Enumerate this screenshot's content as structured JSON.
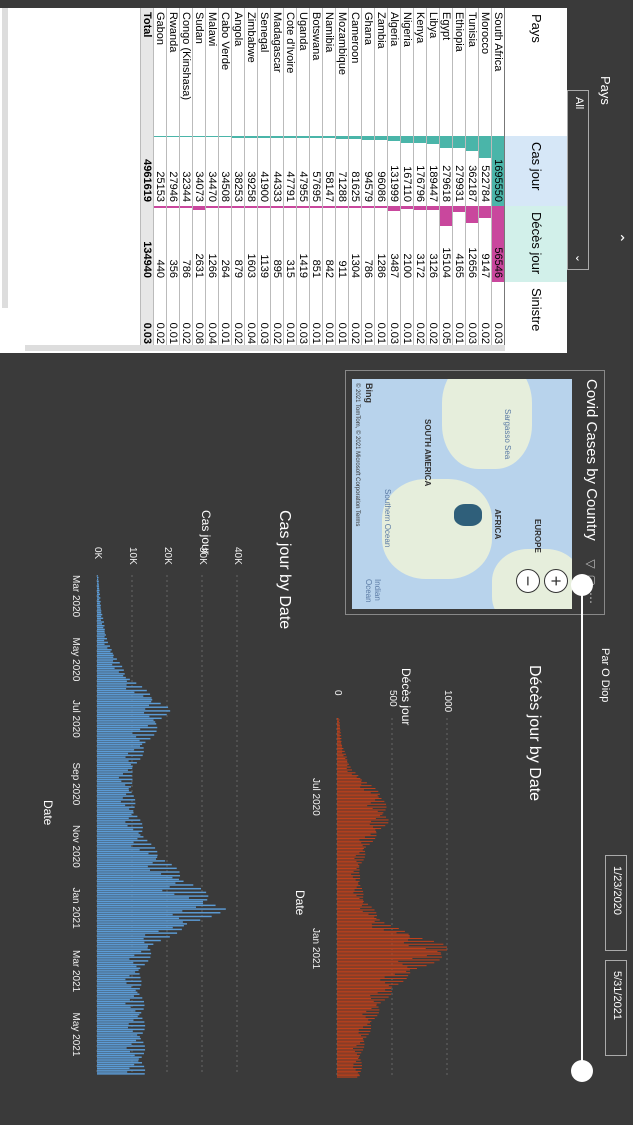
{
  "slicer": {
    "title": "Pays",
    "value": "All"
  },
  "table": {
    "headers": [
      "Pays",
      "Cas jour",
      "Décès jour",
      "Sinistre"
    ],
    "rows": [
      [
        "South Africa",
        "1695550",
        "56546",
        "0.03"
      ],
      [
        "Morocco",
        "522784",
        "9147",
        "0.02"
      ],
      [
        "Tunisia",
        "362187",
        "12656",
        "0.03"
      ],
      [
        "Ethiopia",
        "279931",
        "4165",
        "0.01"
      ],
      [
        "Egypt",
        "279618",
        "15104",
        "0.05"
      ],
      [
        "Libya",
        "189447",
        "3126",
        "0.02"
      ],
      [
        "Kenya",
        "176796",
        "3172",
        "0.02"
      ],
      [
        "Nigeria",
        "167110",
        "2100",
        "0.01"
      ],
      [
        "Algeria",
        "131999",
        "3487",
        "0.03"
      ],
      [
        "Zambia",
        "96086",
        "1286",
        "0.01"
      ],
      [
        "Ghana",
        "94579",
        "786",
        "0.01"
      ],
      [
        "Cameroon",
        "81625",
        "1304",
        "0.02"
      ],
      [
        "Mozambique",
        "71288",
        "911",
        "0.01"
      ],
      [
        "Namibia",
        "58147",
        "842",
        "0.01"
      ],
      [
        "Botswana",
        "57695",
        "851",
        "0.01"
      ],
      [
        "Uganda",
        "47955",
        "1419",
        "0.03"
      ],
      [
        "Cote d'Ivoire",
        "47791",
        "315",
        "0.01"
      ],
      [
        "Madagascar",
        "44333",
        "895",
        "0.02"
      ],
      [
        "Senegal",
        "41900",
        "1139",
        "0.03"
      ],
      [
        "Zimbabwe",
        "39258",
        "1603",
        "0.04"
      ],
      [
        "Angola",
        "38253",
        "879",
        "0.02"
      ],
      [
        "Cabo Verde",
        "34508",
        "264",
        "0.01"
      ],
      [
        "Malawi",
        "34470",
        "1266",
        "0.04"
      ],
      [
        "Sudan",
        "34073",
        "2631",
        "0.08"
      ],
      [
        "Congo (Kinshasa)",
        "32344",
        "786",
        "0.02"
      ],
      [
        "Rwanda",
        "27946",
        "356",
        "0.01"
      ],
      [
        "Gabon",
        "25153",
        "440",
        "0.02"
      ]
    ],
    "total": [
      "Total",
      "4961619",
      "134940",
      "0.03"
    ]
  },
  "map": {
    "title": "Covid Cases by Country",
    "labels": [
      "SOUTH AMERICA",
      "AFRICA",
      "EUROPE"
    ],
    "oceans": [
      "Sargasso Sea",
      "Southern Ocean",
      "Indian Ocean"
    ],
    "bing": "Bing",
    "copyright": "© 2021 TomTom, © 2021 Microsoft Corporation  Terms",
    "icons": [
      "filter-icon",
      "focus-icon",
      "more-icon"
    ]
  },
  "header": {
    "author": "Par O Diop",
    "date_start": "1/23/2020",
    "date_end": "5/31/2021"
  },
  "deces_chart": {
    "title": "Décès jour by Date",
    "xlabel": "Date",
    "ylabel": "Décès jour",
    "yticks": [
      "0",
      "500",
      "1000"
    ],
    "xticks": [
      "Jul 2020",
      "Jan 2021"
    ],
    "color": "#c0401a"
  },
  "cas_chart": {
    "title": "Cas jour by Date",
    "xlabel": "Date",
    "ylabel": "Cas jour",
    "yticks": [
      "0K",
      "10K",
      "20K",
      "30K",
      "40K"
    ],
    "xticks": [
      "Mar 2020",
      "May 2020",
      "Jul 2020",
      "Sep 2020",
      "Nov 2020",
      "Jan 2021",
      "Mar 2021",
      "May 2021"
    ],
    "color": "#5b9bd5"
  },
  "chart_data": [
    {
      "type": "bar",
      "title": "Décès jour by Date",
      "xlabel": "Date",
      "ylabel": "Décès jour",
      "ylim": [
        0,
        1100
      ],
      "x": [
        "2020-04",
        "2020-05",
        "2020-06",
        "2020-07",
        "2020-08",
        "2020-09",
        "2020-10",
        "2020-11",
        "2020-12",
        "2021-01",
        "2021-02",
        "2021-03",
        "2021-04",
        "2021-05"
      ],
      "values": [
        20,
        40,
        120,
        380,
        420,
        250,
        180,
        220,
        400,
        980,
        580,
        380,
        280,
        200
      ]
    },
    {
      "type": "bar",
      "title": "Cas jour by Date",
      "xlabel": "Date",
      "ylabel": "Cas jour",
      "ylim": [
        0,
        40000
      ],
      "x": [
        "2020-03",
        "2020-04",
        "2020-05",
        "2020-06",
        "2020-07",
        "2020-08",
        "2020-09",
        "2020-10",
        "2020-11",
        "2020-12",
        "2021-01",
        "2021-02",
        "2021-03",
        "2021-04",
        "2021-05"
      ],
      "values": [
        300,
        1000,
        2500,
        7000,
        17000,
        12000,
        8000,
        9000,
        12000,
        20000,
        30000,
        14000,
        10000,
        11000,
        11000
      ]
    }
  ]
}
